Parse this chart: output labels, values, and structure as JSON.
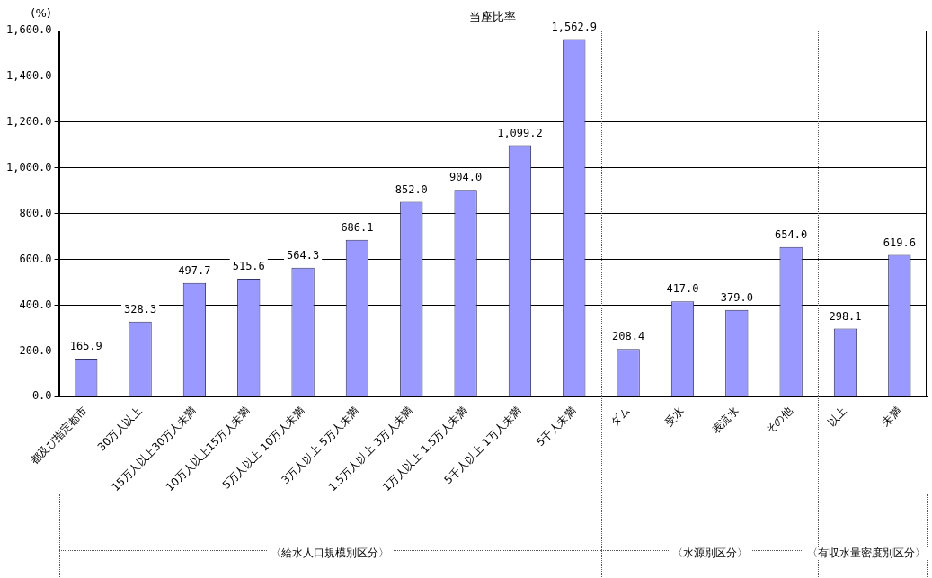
{
  "chart_data": {
    "type": "bar",
    "title": "当座比率",
    "ylabel": "(%)",
    "categories": [
      "都及び指定都市",
      "30万人以上",
      "15万人以上30万人未満",
      "10万人以上15万人未満",
      "5万人以上 10万人未満",
      "3万人以上 5万人未満",
      "1.5万人以上 3万人未満",
      "1万人以上 1.5万人未満",
      "5千人以上 1万人未満",
      "5千人未満",
      "ダム",
      "受水",
      "表流水",
      "その他",
      "以上",
      "未満"
    ],
    "values": [
      165.9,
      328.3,
      497.7,
      515.6,
      564.3,
      686.1,
      852.0,
      904.0,
      1099.2,
      1562.9,
      208.4,
      417.0,
      379.0,
      654.0,
      298.1,
      619.6
    ],
    "value_labels": [
      "165.9",
      "328.3",
      "497.7",
      "515.6",
      "564.3",
      "686.1",
      "852.0",
      "904.0",
      "1,099.2",
      "1,562.9",
      "208.4",
      "417.0",
      "379.0",
      "654.0",
      "298.1",
      "619.6"
    ],
    "color": "#9999ff",
    "ylim": [
      0,
      1600
    ],
    "yticks": [
      {
        "value": 0,
        "label": "0.0"
      },
      {
        "value": 200,
        "label": "200.0"
      },
      {
        "value": 400,
        "label": "400.0"
      },
      {
        "value": 600,
        "label": "600.0"
      },
      {
        "value": 800,
        "label": "800.0"
      },
      {
        "value": 1000,
        "label": "1,000.0"
      },
      {
        "value": 1200,
        "label": "1,200.0"
      },
      {
        "value": 1400,
        "label": "1,400.0"
      },
      {
        "value": 1600,
        "label": "1,600.0"
      }
    ],
    "grid": "y",
    "legend": false,
    "annotations": [
      "〈給水人口規模別区分〉",
      "〈水源別区分〉",
      "〈有収水量密度別区分〉"
    ]
  }
}
